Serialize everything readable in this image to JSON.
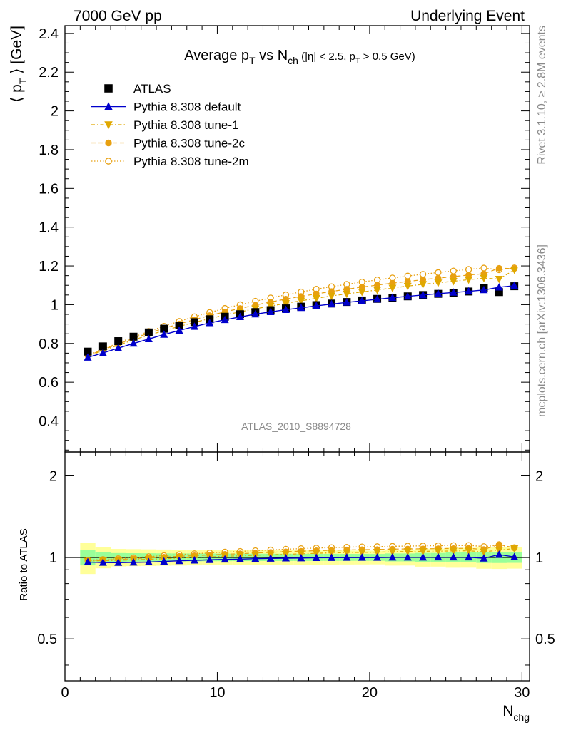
{
  "header": {
    "left": "7000 GeV pp",
    "right": "Underlying Event"
  },
  "side": {
    "rivet": "Rivet 3.1.10, ≥ 2.8M events",
    "mcplots": "mcplots.cern.ch [arXiv:1306.3436]"
  },
  "chart_data": {
    "type": "scatter",
    "title_parts": {
      "a": "Average p",
      "a_sub": "T",
      "b": " vs N",
      "b_sub": "ch",
      "c": " (|η| < 2.5, p",
      "c_sub": "T",
      "d": " > 0.5 GeV)"
    },
    "ylabel_parts": {
      "a": "⟨ p",
      "sub": "T",
      "b": " ⟩ [GeV]"
    },
    "xlabel_parts": {
      "a": "N",
      "sub": "chg"
    },
    "ratio_ylabel": "Ratio to ATLAS",
    "watermark": "ATLAS_2010_S8894728",
    "xlim": [
      0,
      30.5
    ],
    "ylim": [
      0.24,
      2.44
    ],
    "ratio_ylim": [
      0.35,
      2.45
    ],
    "x_ticks": [
      "0",
      "10",
      "20",
      "30"
    ],
    "y_ticks": [
      "0.4",
      "0.6",
      "0.8",
      "1",
      "1.2",
      "1.4",
      "1.6",
      "1.8",
      "2",
      "2.2",
      "2.4"
    ],
    "ratio_ticks": [
      "0.5",
      "1",
      "2"
    ],
    "legend_position": "top-left",
    "x": [
      1.5,
      2.5,
      3.5,
      4.5,
      5.5,
      6.5,
      7.5,
      8.5,
      9.5,
      10.5,
      11.5,
      12.5,
      13.5,
      14.5,
      15.5,
      16.5,
      17.5,
      18.5,
      19.5,
      20.5,
      21.5,
      22.5,
      23.5,
      24.5,
      25.5,
      26.5,
      27.5,
      28.5,
      29.5
    ],
    "series": [
      {
        "name": "ATLAS",
        "color": "#000000",
        "values": [
          0.758,
          0.785,
          0.812,
          0.835,
          0.857,
          0.876,
          0.893,
          0.91,
          0.925,
          0.938,
          0.951,
          0.962,
          0.972,
          0.981,
          0.99,
          0.998,
          1.006,
          1.014,
          1.022,
          1.03,
          1.036,
          1.043,
          1.05,
          1.056,
          1.062,
          1.068,
          1.085,
          1.065,
          1.095
        ],
        "unc": [
          0.05,
          0.035,
          0.03,
          0.03,
          0.03,
          0.03,
          0.03,
          0.03,
          0.03,
          0.03,
          0.03,
          0.03,
          0.03,
          0.03,
          0.03,
          0.03,
          0.03,
          0.03,
          0.03,
          0.03,
          0.035,
          0.035,
          0.04,
          0.04,
          0.045,
          0.045,
          0.05,
          0.05,
          0.05
        ]
      },
      {
        "name": "Pythia 8.308 default",
        "color": "#0000cc",
        "values": [
          0.728,
          0.751,
          0.776,
          0.8,
          0.823,
          0.846,
          0.867,
          0.887,
          0.906,
          0.922,
          0.937,
          0.951,
          0.963,
          0.974,
          0.984,
          0.994,
          1.003,
          1.012,
          1.02,
          1.028,
          1.036,
          1.043,
          1.05,
          1.057,
          1.063,
          1.069,
          1.076,
          1.09,
          1.098
        ]
      },
      {
        "name": "Pythia 8.308 tune-1",
        "color": "#e0a800",
        "values": [
          0.735,
          0.763,
          0.791,
          0.818,
          0.843,
          0.866,
          0.888,
          0.909,
          0.928,
          0.947,
          0.963,
          0.979,
          0.993,
          1.007,
          1.02,
          1.033,
          1.045,
          1.056,
          1.066,
          1.076,
          1.086,
          1.096,
          1.105,
          1.113,
          1.121,
          1.129,
          1.137,
          1.132,
          1.18
        ]
      },
      {
        "name": "Pythia 8.308 tune-2c",
        "color": "#e8a010",
        "values": [
          0.738,
          0.767,
          0.797,
          0.826,
          0.853,
          0.878,
          0.901,
          0.923,
          0.944,
          0.963,
          0.981,
          0.998,
          1.014,
          1.029,
          1.043,
          1.056,
          1.068,
          1.08,
          1.091,
          1.101,
          1.111,
          1.12,
          1.129,
          1.137,
          1.145,
          1.153,
          1.16,
          1.188,
          1.186
        ]
      },
      {
        "name": "Pythia 8.308 tune-2m",
        "color": "#e8a010",
        "values": [
          0.74,
          0.771,
          0.803,
          0.833,
          0.862,
          0.889,
          0.914,
          0.938,
          0.96,
          0.981,
          1.0,
          1.018,
          1.035,
          1.051,
          1.066,
          1.08,
          1.093,
          1.105,
          1.117,
          1.128,
          1.138,
          1.148,
          1.157,
          1.166,
          1.174,
          1.182,
          1.189,
          1.18,
          1.19
        ]
      }
    ]
  }
}
